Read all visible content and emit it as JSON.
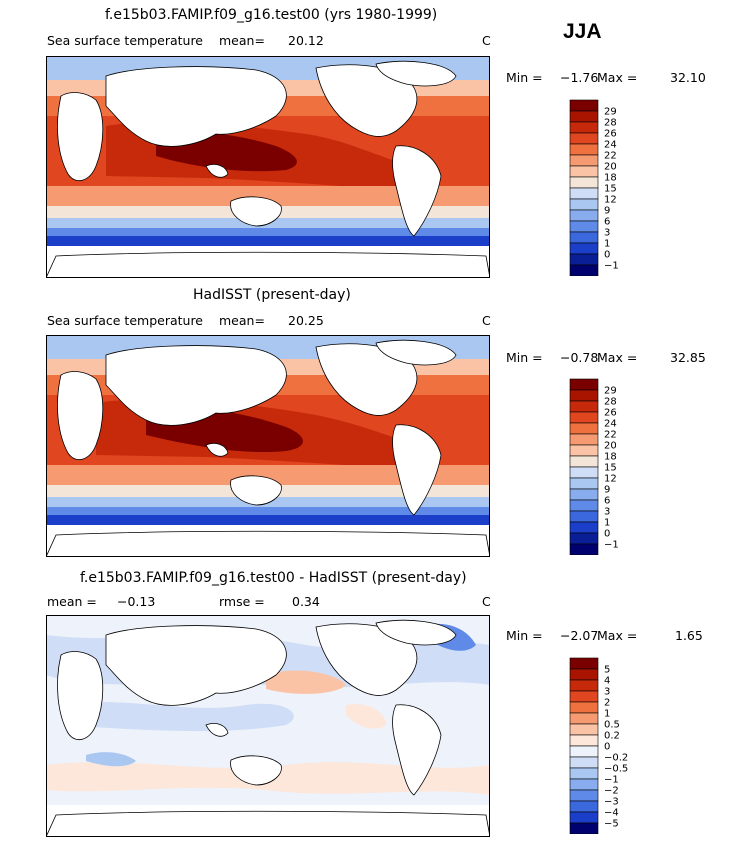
{
  "season": "JJA",
  "panels": [
    {
      "title": "f.e15b03.FAMIP.f09_g16.test00 (yrs 1980-1999)",
      "left_label": "Sea surface temperature",
      "mean_label": "mean=",
      "mean_value": "20.12",
      "units": "C",
      "min_label": "Min =",
      "min_value": "−1.76",
      "max_label": "Max =",
      "max_value": "32.10",
      "colorbar": {
        "labels": [
          "29",
          "28",
          "26",
          "24",
          "22",
          "20",
          "18",
          "15",
          "12",
          "9",
          "6",
          "3",
          "1",
          "0",
          "−1"
        ],
        "colors": [
          "#7a0000",
          "#a81400",
          "#c72a0a",
          "#e0461f",
          "#f07140",
          "#f69a72",
          "#fbc3a6",
          "#f3e6d8",
          "#cfdef6",
          "#aac7f2",
          "#88acee",
          "#5f8ae8",
          "#3c68de",
          "#1b3fc9",
          "#0a1e96",
          "#00006e"
        ]
      }
    },
    {
      "title": "HadISST (present-day)",
      "left_label": "Sea surface temperature",
      "mean_label": "mean=",
      "mean_value": "20.25",
      "units": "C",
      "min_label": "Min =",
      "min_value": "−0.78",
      "max_label": "Max =",
      "max_value": "32.85",
      "colorbar": {
        "labels": [
          "29",
          "28",
          "26",
          "24",
          "22",
          "20",
          "18",
          "15",
          "12",
          "9",
          "6",
          "3",
          "1",
          "0",
          "−1"
        ],
        "colors": [
          "#7a0000",
          "#a81400",
          "#c72a0a",
          "#e0461f",
          "#f07140",
          "#f69a72",
          "#fbc3a6",
          "#f3e6d8",
          "#cfdef6",
          "#aac7f2",
          "#88acee",
          "#5f8ae8",
          "#3c68de",
          "#1b3fc9",
          "#0a1e96",
          "#00006e"
        ]
      }
    },
    {
      "title": "f.e15b03.FAMIP.f09_g16.test00 - HadISST (present-day)",
      "left_label": "mean =",
      "mean_label": "",
      "mean_value": "−0.13",
      "rmse_label": "rmse =",
      "rmse_value": "0.34",
      "units": "C",
      "min_label": "Min =",
      "min_value": "−2.07",
      "max_label": "Max =",
      "max_value": "1.65",
      "colorbar": {
        "labels": [
          "5",
          "4",
          "3",
          "2",
          "1",
          "0.5",
          "0.2",
          "0",
          "−0.2",
          "−0.5",
          "−1",
          "−2",
          "−3",
          "−4",
          "−5"
        ],
        "colors": [
          "#7a0000",
          "#a81400",
          "#c72a0a",
          "#e0461f",
          "#f07140",
          "#f69a72",
          "#fbc3a6",
          "#fde6da",
          "#eef2fb",
          "#cfdef6",
          "#aac7f2",
          "#88acee",
          "#5f8ae8",
          "#3c68de",
          "#1b3fc9",
          "#00006e"
        ]
      }
    }
  ]
}
